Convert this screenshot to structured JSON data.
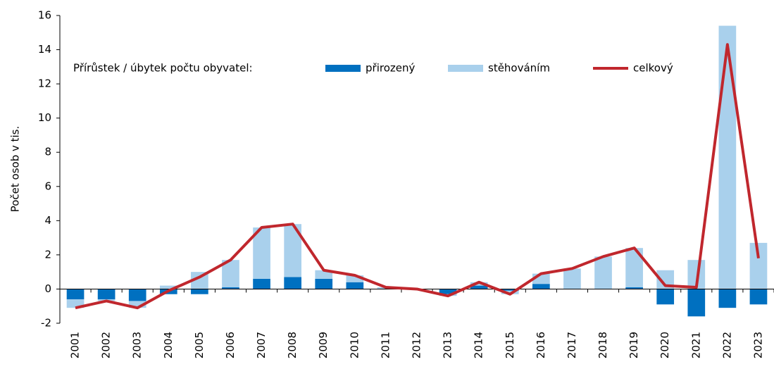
{
  "chart_data": {
    "type": "bar",
    "y_label": "Počet osob v tis.",
    "legend_title": "Přírůstek / úbytek počtu obyvatel:",
    "categories": [
      "2001",
      "2002",
      "2003",
      "2004",
      "2005",
      "2006",
      "2007",
      "2008",
      "2009",
      "2010",
      "2011",
      "2012",
      "2013",
      "2014",
      "2015",
      "2016",
      "2017",
      "2018",
      "2019",
      "2020",
      "2021",
      "2022",
      "2023"
    ],
    "series": [
      {
        "name": "přirozený",
        "type": "bar",
        "color": "#0070c0",
        "values": [
          -0.6,
          -0.6,
          -0.7,
          -0.3,
          -0.3,
          0.1,
          0.6,
          0.7,
          0.6,
          0.4,
          0.0,
          0.0,
          -0.3,
          0.2,
          -0.1,
          0.3,
          0.0,
          0.0,
          0.1,
          -0.9,
          -1.6,
          -1.1,
          -0.9
        ]
      },
      {
        "name": "stěhováním",
        "type": "bar",
        "color": "#a9d0ec",
        "values": [
          -0.5,
          -0.1,
          -0.4,
          0.2,
          1.0,
          1.6,
          3.0,
          3.1,
          0.5,
          0.4,
          0.1,
          0.0,
          -0.1,
          0.2,
          -0.2,
          0.6,
          1.2,
          1.9,
          2.3,
          1.1,
          1.7,
          15.4,
          2.7
        ]
      },
      {
        "name": "celkový",
        "type": "line",
        "color": "#c0272d",
        "values": [
          -1.1,
          -0.7,
          -1.1,
          -0.1,
          0.7,
          1.7,
          3.6,
          3.8,
          1.1,
          0.8,
          0.1,
          0.0,
          -0.4,
          0.4,
          -0.3,
          0.9,
          1.2,
          1.9,
          2.4,
          0.2,
          0.1,
          14.3,
          1.8
        ]
      }
    ],
    "ylim": [
      -2,
      16
    ],
    "yticks": [
      -2,
      0,
      2,
      4,
      6,
      8,
      10,
      12,
      14,
      16
    ],
    "grid": false
  }
}
